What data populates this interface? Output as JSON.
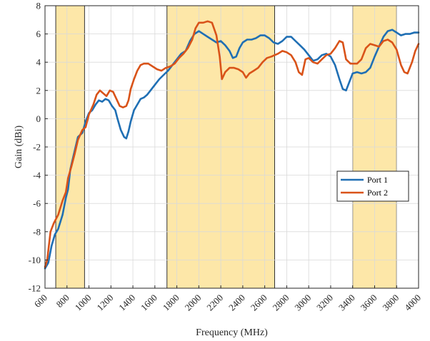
{
  "chart_data": {
    "type": "line",
    "title": "",
    "xlabel": "Frequency (MHz)",
    "ylabel": "Gain (dBi)",
    "xlim": [
      600,
      4000
    ],
    "ylim": [
      -12,
      8
    ],
    "xticks": [
      600,
      800,
      1000,
      1200,
      1400,
      1600,
      1800,
      2000,
      2200,
      2400,
      2600,
      2800,
      3000,
      3200,
      3400,
      3600,
      3800,
      4000
    ],
    "yticks": [
      -12,
      -10,
      -8,
      -6,
      -4,
      -2,
      0,
      2,
      4,
      6,
      8
    ],
    "grid": true,
    "legend_position": "lower-right",
    "shaded_bands": [
      {
        "x_start": 698,
        "x_end": 960,
        "color": "#fde7a8"
      },
      {
        "x_start": 1710,
        "x_end": 2690,
        "color": "#fde7a8"
      },
      {
        "x_start": 3400,
        "x_end": 3800,
        "color": "#fde7a8"
      }
    ],
    "series": [
      {
        "name": "Port 1",
        "color": "#1f6fb4",
        "points": [
          [
            600,
            -10.6
          ],
          [
            630,
            -10.2
          ],
          [
            660,
            -9.0
          ],
          [
            690,
            -8.2
          ],
          [
            720,
            -7.8
          ],
          [
            760,
            -6.8
          ],
          [
            790,
            -5.6
          ],
          [
            810,
            -5.0
          ],
          [
            830,
            -3.6
          ],
          [
            860,
            -2.6
          ],
          [
            900,
            -1.3
          ],
          [
            940,
            -1.0
          ],
          [
            970,
            -0.2
          ],
          [
            1000,
            0.4
          ],
          [
            1030,
            0.6
          ],
          [
            1060,
            1.0
          ],
          [
            1090,
            1.3
          ],
          [
            1120,
            1.2
          ],
          [
            1150,
            1.4
          ],
          [
            1180,
            1.3
          ],
          [
            1210,
            0.9
          ],
          [
            1240,
            0.6
          ],
          [
            1260,
            0.0
          ],
          [
            1290,
            -0.8
          ],
          [
            1320,
            -1.3
          ],
          [
            1340,
            -1.4
          ],
          [
            1360,
            -0.9
          ],
          [
            1380,
            -0.2
          ],
          [
            1410,
            0.6
          ],
          [
            1440,
            1.0
          ],
          [
            1470,
            1.4
          ],
          [
            1500,
            1.5
          ],
          [
            1530,
            1.7
          ],
          [
            1560,
            2.0
          ],
          [
            1600,
            2.4
          ],
          [
            1640,
            2.8
          ],
          [
            1680,
            3.1
          ],
          [
            1720,
            3.4
          ],
          [
            1760,
            3.8
          ],
          [
            1800,
            4.2
          ],
          [
            1840,
            4.6
          ],
          [
            1880,
            4.8
          ],
          [
            1920,
            5.5
          ],
          [
            1960,
            6.0
          ],
          [
            2000,
            6.2
          ],
          [
            2040,
            6.0
          ],
          [
            2080,
            5.8
          ],
          [
            2120,
            5.6
          ],
          [
            2160,
            5.4
          ],
          [
            2200,
            5.5
          ],
          [
            2240,
            5.2
          ],
          [
            2280,
            4.8
          ],
          [
            2310,
            4.3
          ],
          [
            2340,
            4.4
          ],
          [
            2370,
            5.0
          ],
          [
            2400,
            5.4
          ],
          [
            2440,
            5.6
          ],
          [
            2480,
            5.6
          ],
          [
            2520,
            5.7
          ],
          [
            2560,
            5.9
          ],
          [
            2600,
            5.9
          ],
          [
            2640,
            5.7
          ],
          [
            2680,
            5.4
          ],
          [
            2720,
            5.3
          ],
          [
            2760,
            5.5
          ],
          [
            2800,
            5.8
          ],
          [
            2840,
            5.8
          ],
          [
            2880,
            5.5
          ],
          [
            2920,
            5.2
          ],
          [
            2960,
            4.9
          ],
          [
            3000,
            4.5
          ],
          [
            3040,
            4.1
          ],
          [
            3080,
            4.2
          ],
          [
            3120,
            4.5
          ],
          [
            3160,
            4.6
          ],
          [
            3200,
            4.4
          ],
          [
            3240,
            3.8
          ],
          [
            3280,
            2.8
          ],
          [
            3310,
            2.1
          ],
          [
            3340,
            2.0
          ],
          [
            3370,
            2.6
          ],
          [
            3400,
            3.2
          ],
          [
            3440,
            3.3
          ],
          [
            3480,
            3.2
          ],
          [
            3520,
            3.3
          ],
          [
            3560,
            3.6
          ],
          [
            3600,
            4.4
          ],
          [
            3640,
            5.1
          ],
          [
            3680,
            5.8
          ],
          [
            3720,
            6.2
          ],
          [
            3760,
            6.3
          ],
          [
            3800,
            6.1
          ],
          [
            3840,
            5.9
          ],
          [
            3880,
            6.0
          ],
          [
            3920,
            6.0
          ],
          [
            3960,
            6.1
          ],
          [
            4000,
            6.1
          ]
        ]
      },
      {
        "name": "Port 2",
        "color": "#d95319",
        "points": [
          [
            600,
            -10.5
          ],
          [
            620,
            -10.0
          ],
          [
            650,
            -8.0
          ],
          [
            680,
            -7.4
          ],
          [
            720,
            -6.8
          ],
          [
            760,
            -5.8
          ],
          [
            790,
            -5.2
          ],
          [
            810,
            -4.2
          ],
          [
            840,
            -3.4
          ],
          [
            870,
            -2.5
          ],
          [
            900,
            -1.5
          ],
          [
            940,
            -0.8
          ],
          [
            970,
            -0.6
          ],
          [
            1000,
            0.3
          ],
          [
            1040,
            1.0
          ],
          [
            1070,
            1.7
          ],
          [
            1100,
            2.0
          ],
          [
            1130,
            1.8
          ],
          [
            1160,
            1.6
          ],
          [
            1190,
            2.0
          ],
          [
            1220,
            1.9
          ],
          [
            1250,
            1.4
          ],
          [
            1280,
            0.9
          ],
          [
            1310,
            0.8
          ],
          [
            1340,
            0.9
          ],
          [
            1360,
            1.3
          ],
          [
            1380,
            2.1
          ],
          [
            1410,
            2.8
          ],
          [
            1440,
            3.4
          ],
          [
            1470,
            3.8
          ],
          [
            1500,
            3.9
          ],
          [
            1540,
            3.9
          ],
          [
            1580,
            3.7
          ],
          [
            1620,
            3.5
          ],
          [
            1660,
            3.4
          ],
          [
            1700,
            3.6
          ],
          [
            1740,
            3.7
          ],
          [
            1780,
            3.9
          ],
          [
            1820,
            4.3
          ],
          [
            1860,
            4.6
          ],
          [
            1900,
            5.0
          ],
          [
            1940,
            5.6
          ],
          [
            1970,
            6.4
          ],
          [
            2000,
            6.8
          ],
          [
            2040,
            6.8
          ],
          [
            2080,
            6.9
          ],
          [
            2120,
            6.8
          ],
          [
            2160,
            5.9
          ],
          [
            2190,
            4.4
          ],
          [
            2210,
            2.8
          ],
          [
            2240,
            3.3
          ],
          [
            2280,
            3.6
          ],
          [
            2320,
            3.6
          ],
          [
            2360,
            3.5
          ],
          [
            2400,
            3.3
          ],
          [
            2430,
            2.9
          ],
          [
            2460,
            3.2
          ],
          [
            2500,
            3.4
          ],
          [
            2540,
            3.6
          ],
          [
            2580,
            4.0
          ],
          [
            2620,
            4.3
          ],
          [
            2660,
            4.4
          ],
          [
            2690,
            4.5
          ],
          [
            2720,
            4.6
          ],
          [
            2760,
            4.8
          ],
          [
            2800,
            4.7
          ],
          [
            2840,
            4.5
          ],
          [
            2880,
            4.0
          ],
          [
            2910,
            3.3
          ],
          [
            2940,
            3.1
          ],
          [
            2970,
            4.2
          ],
          [
            3000,
            4.3
          ],
          [
            3040,
            4.0
          ],
          [
            3080,
            3.9
          ],
          [
            3120,
            4.2
          ],
          [
            3160,
            4.5
          ],
          [
            3200,
            4.6
          ],
          [
            3240,
            5.0
          ],
          [
            3280,
            5.5
          ],
          [
            3310,
            5.4
          ],
          [
            3340,
            4.2
          ],
          [
            3380,
            3.9
          ],
          [
            3400,
            3.9
          ],
          [
            3440,
            3.9
          ],
          [
            3480,
            4.2
          ],
          [
            3520,
            5.0
          ],
          [
            3560,
            5.3
          ],
          [
            3600,
            5.2
          ],
          [
            3640,
            5.1
          ],
          [
            3680,
            5.5
          ],
          [
            3720,
            5.6
          ],
          [
            3760,
            5.4
          ],
          [
            3800,
            4.9
          ],
          [
            3840,
            3.8
          ],
          [
            3870,
            3.3
          ],
          [
            3900,
            3.2
          ],
          [
            3940,
            4.0
          ],
          [
            3970,
            4.8
          ],
          [
            4000,
            5.3
          ]
        ]
      }
    ]
  }
}
